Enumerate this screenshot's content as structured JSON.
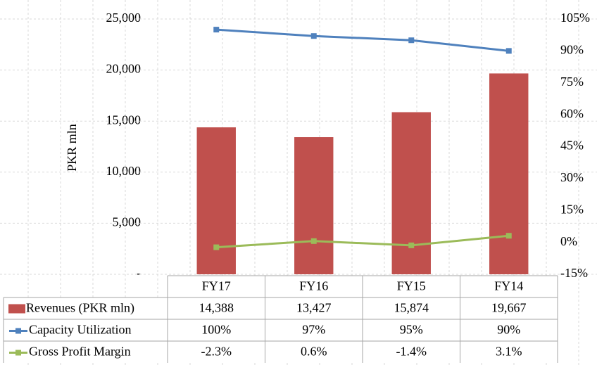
{
  "chart_data": {
    "type": "bar_line_table",
    "y_label": "PKR mln",
    "categories": [
      "FY17",
      "FY16",
      "FY15",
      "FY14"
    ],
    "series": [
      {
        "name": "Revenues (PKR mln)",
        "type": "bar",
        "color": "#c0504d",
        "values": [
          14388,
          13427,
          15874,
          19667
        ],
        "value_labels": [
          "14,388",
          "13,427",
          "15,874",
          "19,667"
        ]
      },
      {
        "name": "Capacity Utilization",
        "type": "line",
        "axis": "y2",
        "color": "#4f81bd",
        "values": [
          100,
          97,
          95,
          90
        ],
        "value_labels": [
          "100%",
          "97%",
          "95%",
          "90%"
        ]
      },
      {
        "name": "Gross Profit Margin",
        "type": "line",
        "axis": "y2",
        "color": "#9bbb59",
        "values": [
          -2.3,
          0.6,
          -1.4,
          3.1
        ],
        "value_labels": [
          "-2.3%",
          "0.6%",
          "-1.4%",
          "3.1%"
        ]
      }
    ],
    "ylim": [
      0,
      25000
    ],
    "yticks": [
      {
        "value": 0,
        "label": "-"
      },
      {
        "value": 5000,
        "label": "5,000"
      },
      {
        "value": 10000,
        "label": "10,000"
      },
      {
        "value": 15000,
        "label": "15,000"
      },
      {
        "value": 20000,
        "label": "20,000"
      },
      {
        "value": 25000,
        "label": "25,000"
      }
    ],
    "y2lim": [
      -15,
      105
    ],
    "y2ticks": [
      {
        "value": -15,
        "label": "-15%"
      },
      {
        "value": 0,
        "label": "0%"
      },
      {
        "value": 15,
        "label": "15%"
      },
      {
        "value": 30,
        "label": "30%"
      },
      {
        "value": 45,
        "label": "45%"
      },
      {
        "value": 60,
        "label": "60%"
      },
      {
        "value": 75,
        "label": "75%"
      },
      {
        "value": 90,
        "label": "90%"
      },
      {
        "value": 105,
        "label": "105%"
      }
    ],
    "grid": true
  }
}
